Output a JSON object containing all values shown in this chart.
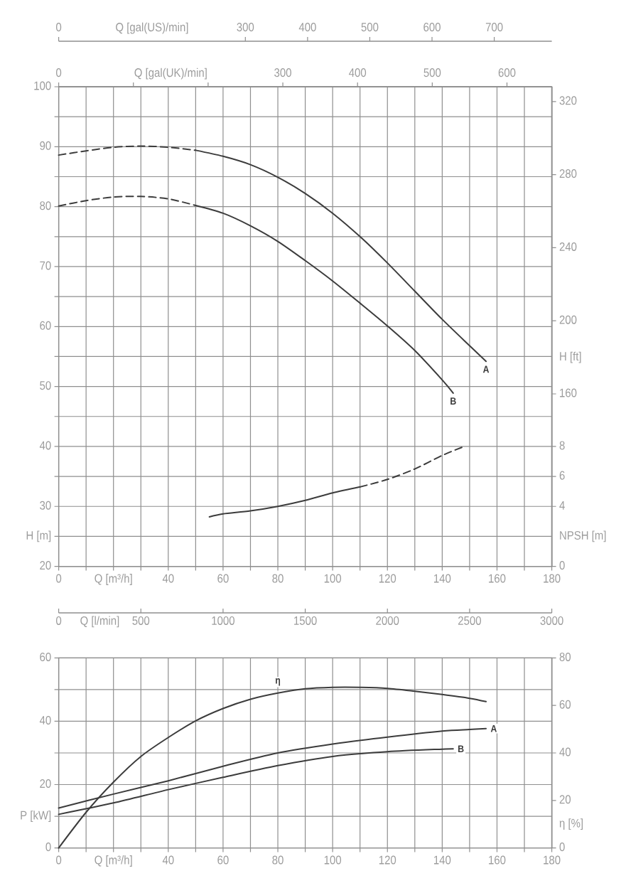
{
  "chart_data": [
    {
      "type": "line",
      "xlabel": "Q [m³/h]",
      "ylabel": "H [m]",
      "y2label": "H [ft]",
      "x2label": "Q [gal(UK)/min]",
      "xlim": [
        0,
        180
      ],
      "xticks": [
        0,
        {
          "value": 10,
          "label": null
        },
        {
          "value": 20,
          "label": null
        },
        {
          "value": 30,
          "label": null
        },
        40,
        {
          "value": 50,
          "label": null
        },
        60,
        {
          "value": 70,
          "label": null
        },
        80,
        {
          "value": 90,
          "label": null
        },
        100,
        {
          "value": 110,
          "label": null
        },
        120,
        {
          "value": 130,
          "label": null
        },
        140,
        {
          "value": 150,
          "label": null
        },
        160,
        {
          "value": 170,
          "label": null
        },
        180
      ],
      "ylim": [
        20,
        100
      ],
      "yticks": [
        20,
        {
          "value": 25,
          "label": null
        },
        30,
        {
          "value": 35,
          "label": null
        },
        40,
        {
          "value": 45,
          "label": null
        },
        50,
        {
          "value": 55,
          "label": null
        },
        60,
        {
          "value": 65,
          "label": null
        },
        70,
        {
          "value": 75,
          "label": null
        },
        80,
        {
          "value": 85,
          "label": null
        },
        90,
        {
          "value": 95,
          "label": null
        },
        100
      ],
      "y2lim": [
        65.6,
        328.1
      ],
      "y2ticks": [
        160,
        200,
        240,
        280,
        320
      ],
      "x2lim": [
        0,
        660
      ],
      "x2ticks": [
        0,
        {
          "value": 100,
          "label": null
        },
        {
          "value": 200,
          "label": null
        },
        300,
        400,
        500,
        600
      ],
      "grid": true,
      "series": [
        {
          "color": "#3c3c3c",
          "line_style": "dashed",
          "x": [
            0,
            10,
            20,
            30,
            40,
            50
          ],
          "values": [
            88.6,
            89.3,
            89.9,
            90.1,
            89.9,
            89.4
          ]
        },
        {
          "name": "A",
          "color": "#3c3c3c",
          "line_style": "solid",
          "x": [
            50,
            60,
            70,
            80,
            90,
            100,
            110,
            120,
            130,
            140,
            150,
            156
          ],
          "values": [
            89.4,
            88.4,
            87.0,
            84.9,
            82.2,
            78.9,
            75.0,
            70.6,
            65.9,
            61.2,
            56.8,
            54.2
          ]
        },
        {
          "color": "#3c3c3c",
          "line_style": "dashed",
          "x": [
            0,
            10,
            20,
            30,
            40,
            50
          ],
          "values": [
            80.1,
            81.0,
            81.6,
            81.7,
            81.3,
            80.2
          ]
        },
        {
          "name": "B",
          "color": "#3c3c3c",
          "line_style": "solid",
          "x": [
            50,
            60,
            70,
            80,
            90,
            100,
            110,
            120,
            130,
            140,
            144
          ],
          "values": [
            80.2,
            78.9,
            76.8,
            74.2,
            71.0,
            67.6,
            63.9,
            60.1,
            56.0,
            51.1,
            48.9
          ]
        }
      ]
    },
    {
      "type": "line",
      "ylabel": "NPSH [m]",
      "x2label": "Q [gal(US)/min]",
      "xlim": [
        0,
        180
      ],
      "tick_labels": "y",
      "ylim": [
        0,
        32
      ],
      "yticks": [
        0,
        4,
        6,
        8
      ],
      "x2lim": [
        0,
        792.5
      ],
      "x2ticks": [
        0,
        300,
        400,
        500,
        600,
        700
      ],
      "series": [
        {
          "color": "#3c3c3c",
          "line_style": "solid",
          "x": [
            55,
            60,
            70,
            80,
            90,
            100,
            110
          ],
          "values": [
            3.3,
            3.5,
            3.7,
            4.0,
            4.4,
            4.9,
            5.3
          ]
        },
        {
          "color": "#3c3c3c",
          "line_style": "dashed",
          "x": [
            110,
            120,
            130,
            140,
            148
          ],
          "values": [
            5.3,
            5.8,
            6.5,
            7.4,
            8.0
          ]
        }
      ]
    },
    {
      "type": "line",
      "xlabel": "Q [m³/h]",
      "ylabel": "P [kW]",
      "y2label": "η [%]",
      "x2label": "Q [l/min]",
      "xlim": [
        0,
        180
      ],
      "xticks": [
        0,
        {
          "value": 10,
          "label": null
        },
        {
          "value": 20,
          "label": null
        },
        {
          "value": 30,
          "label": null
        },
        40,
        {
          "value": 50,
          "label": null
        },
        60,
        {
          "value": 70,
          "label": null
        },
        80,
        {
          "value": 90,
          "label": null
        },
        100,
        {
          "value": 110,
          "label": null
        },
        120,
        {
          "value": 130,
          "label": null
        },
        140,
        {
          "value": 150,
          "label": null
        },
        160,
        {
          "value": 170,
          "label": null
        },
        180
      ],
      "ylim": [
        0,
        60
      ],
      "yticks": [
        0,
        {
          "value": 10,
          "label": null
        },
        20,
        {
          "value": 30,
          "label": null
        },
        40,
        {
          "value": 50,
          "label": null
        },
        60
      ],
      "y2lim": [
        0,
        80
      ],
      "y2ticks": [
        0,
        20,
        40,
        60,
        80
      ],
      "x2lim": [
        0,
        3000
      ],
      "x2ticks": [
        0,
        500,
        1000,
        1500,
        2000,
        2500,
        3000
      ],
      "grid": true,
      "series": [
        {
          "name": "η",
          "color": "#3c3c3c",
          "axis": "y2",
          "line_style": "solid",
          "x": [
            0,
            10,
            20,
            30,
            40,
            50,
            60,
            70,
            80,
            90,
            100,
            110,
            120,
            130,
            140,
            150,
            156
          ],
          "values": [
            0,
            15.0,
            27.7,
            38.5,
            46.5,
            53.5,
            58.7,
            62.6,
            65.2,
            67.0,
            67.6,
            67.6,
            67.2,
            66.0,
            64.6,
            63.0,
            61.6
          ]
        },
        {
          "name": "A",
          "color": "#3c3c3c",
          "line_style": "solid",
          "x": [
            0,
            20,
            40,
            60,
            80,
            100,
            120,
            140,
            150,
            156
          ],
          "values": [
            12.6,
            17.0,
            21.2,
            25.8,
            30.0,
            32.8,
            35.0,
            36.9,
            37.4,
            37.7
          ]
        },
        {
          "name": "B",
          "color": "#3c3c3c",
          "line_style": "solid",
          "x": [
            0,
            20,
            40,
            60,
            80,
            100,
            120,
            140,
            144
          ],
          "values": [
            10.6,
            14.2,
            18.4,
            22.3,
            26.0,
            28.9,
            30.4,
            31.2,
            31.3
          ]
        }
      ]
    }
  ]
}
